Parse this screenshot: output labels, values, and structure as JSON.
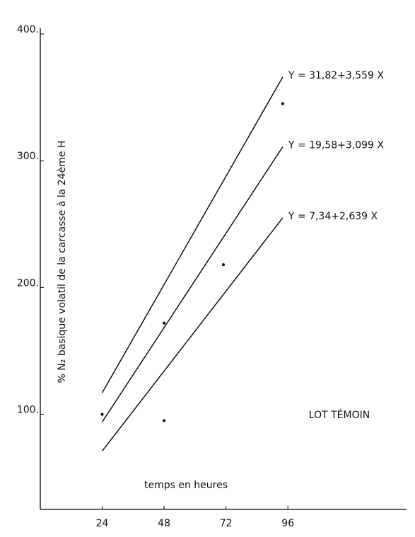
{
  "chart_data": {
    "type": "line",
    "x_label": "temps  en heures",
    "y_label": "% N₂  basique volatil de la carcasse à la 24ème H",
    "annotation": "LOT TÉMOIN",
    "xlim": [
      0,
      142
    ],
    "xticks": [
      24,
      48,
      72,
      96
    ],
    "ylim": [
      25,
      400
    ],
    "yticks": [
      {
        "value": 100,
        "label": "100."
      },
      {
        "value": 200,
        "label": "200."
      },
      {
        "value": 300,
        "label": "300."
      },
      {
        "value": 400,
        "label": "400."
      }
    ],
    "x": [
      24,
      94
    ],
    "series": [
      {
        "name": "Y = 31,82+3,559 X",
        "color": "#000000",
        "values": [
          117,
          366
        ]
      },
      {
        "name": "Y = 19,58+3,099 X",
        "color": "#000000",
        "values": [
          94,
          311
        ]
      },
      {
        "name": "Y = 7,34+2,639 X",
        "color": "#000000",
        "values": [
          71,
          255
        ]
      }
    ],
    "points": {
      "x": [
        24,
        48,
        71,
        94,
        48
      ],
      "values": [
        100,
        172,
        218,
        345,
        95
      ]
    }
  }
}
